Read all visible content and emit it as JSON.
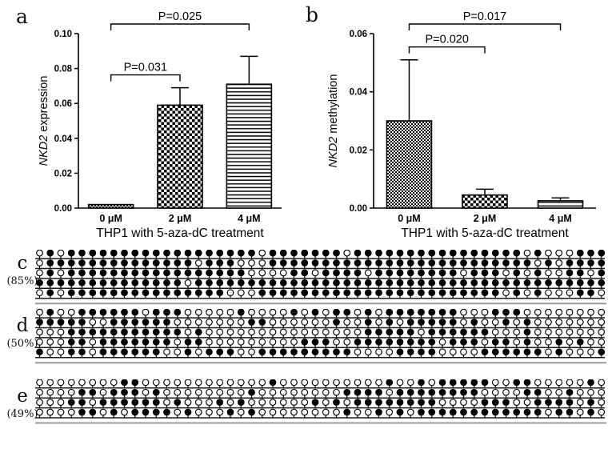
{
  "chart_data": [
    {
      "type": "bar",
      "panel_label": "a",
      "categories": [
        "0 μM",
        "2 μM",
        "4 μM"
      ],
      "values": [
        0.002,
        0.059,
        0.071
      ],
      "errors_up": [
        0,
        0.01,
        0.016
      ],
      "ylabel": "NKD2 expression",
      "ylabel_parts": [
        {
          "text": "NKD2",
          "italic": true
        },
        {
          "text": " expression",
          "italic": false
        }
      ],
      "xlabel": "THP1 with 5-aza-dC treatment",
      "ylim": [
        0,
        0.1
      ],
      "ytick_labels": [
        "0.00",
        "0.02",
        "0.04",
        "0.06",
        "0.08",
        "0.10"
      ],
      "bar_patterns": [
        "checker-fine",
        "checker",
        "hlines"
      ],
      "significance": [
        {
          "from": 0,
          "to": 1,
          "label": "P=0.031"
        },
        {
          "from": 0,
          "to": 2,
          "label": "P=0.025"
        }
      ],
      "grid": false,
      "legend": false,
      "ink_color": "#000000"
    },
    {
      "type": "bar",
      "panel_label": "b",
      "categories": [
        "0 μM",
        "2 μM",
        "4 μM"
      ],
      "values": [
        0.03,
        0.0045,
        0.0025
      ],
      "errors_up": [
        0.021,
        0.002,
        0.001
      ],
      "ylabel": "NKD2 methylation",
      "ylabel_parts": [
        {
          "text": "NKD2",
          "italic": true
        },
        {
          "text": " methylation",
          "italic": false
        }
      ],
      "xlabel": "THP1 with 5-aza-dC treatment",
      "ylim": [
        0,
        0.06
      ],
      "ytick_labels": [
        "0.00",
        "0.02",
        "0.04",
        "0.06"
      ],
      "bar_patterns": [
        "checker-fine",
        "checker",
        "hlines"
      ],
      "significance": [
        {
          "from": 0,
          "to": 1,
          "label": "P=0.020"
        },
        {
          "from": 0,
          "to": 2,
          "label": "P=0.017"
        }
      ],
      "grid": false,
      "legend": false,
      "ink_color": "#000000"
    }
  ],
  "methylation": {
    "panels": [
      {
        "label": "c",
        "percent": "(85%)",
        "rows": [
          "010111111111111111111011111110111111111111111101000111",
          "011111111111111011100011111111111111111111111110101111",
          "010111111111111111110000110111101111111101110101001101",
          "111111111111110111111111111111111111111111111111111111",
          "010111111111111111000111111111111111111111110101000110"
        ]
      },
      {
        "label": "d",
        "percent": "(50%)",
        "rows": [
          "010011111101110000010000101011010111111100011100000000",
          "111110011111100000001100000010010101111101001010000000",
          "000111111111110100000000000000011111011111100010000000",
          "000110111111101100000000011100111111110111011010010100",
          "100110111111001011100111111111000011110000111111010001"
        ]
      },
      {
        "label": "e",
        "percent": "(49%)",
        "rows": [
          "000000001100000000000010000000000100101111100110000010",
          "000011011101000000001000000001111011111111000011001000",
          "000110111111010001010000001010111111110000111001111010",
          "000011010111101000101000000001001010111111111111011010"
        ]
      }
    ]
  }
}
